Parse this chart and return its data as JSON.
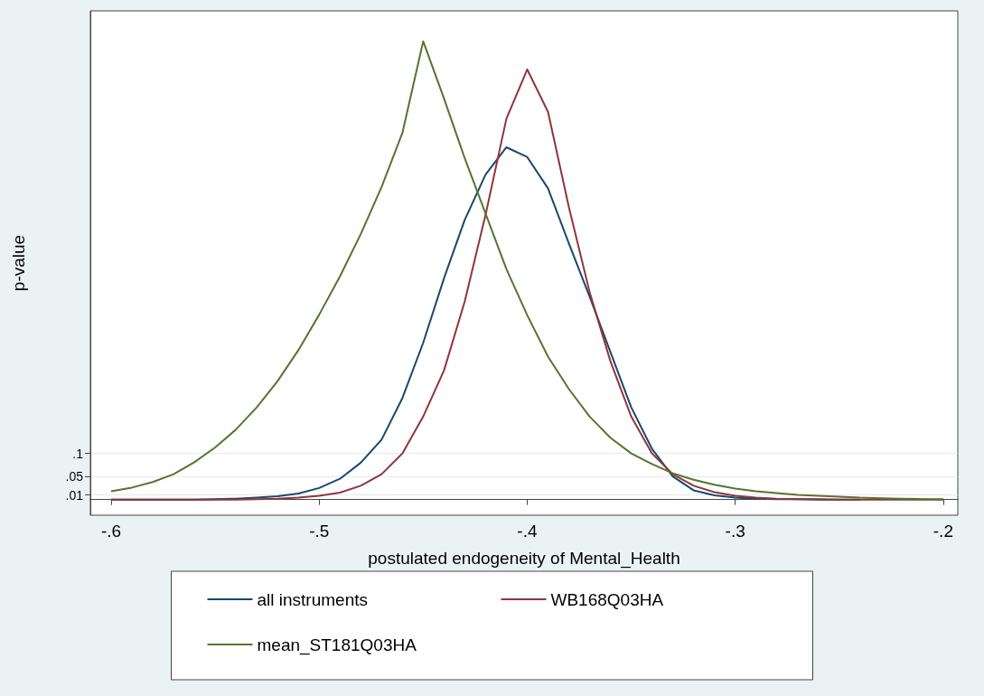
{
  "chart_data": {
    "type": "line",
    "xlabel": "postulated endogeneity of Mental_Health",
    "ylabel": "p-value",
    "x": [
      -0.6,
      -0.59,
      -0.58,
      -0.57,
      -0.56,
      -0.55,
      -0.54,
      -0.53,
      -0.52,
      -0.51,
      -0.5,
      -0.49,
      -0.48,
      -0.47,
      -0.46,
      -0.45,
      -0.44,
      -0.43,
      -0.42,
      -0.41,
      -0.4,
      -0.39,
      -0.38,
      -0.37,
      -0.36,
      -0.35,
      -0.34,
      -0.33,
      -0.32,
      -0.31,
      -0.3,
      -0.29,
      -0.28,
      -0.27,
      -0.26,
      -0.25,
      -0.24,
      -0.23,
      -0.22,
      -0.21,
      -0.2
    ],
    "series": [
      {
        "name": "all instruments",
        "color": "#1a476f",
        "values": [
          0,
          0,
          0,
          0,
          0,
          0.001,
          0.002,
          0.004,
          0.007,
          0.013,
          0.025,
          0.045,
          0.08,
          0.13,
          0.22,
          0.34,
          0.48,
          0.607,
          0.705,
          0.764,
          0.743,
          0.675,
          0.556,
          0.44,
          0.32,
          0.2,
          0.11,
          0.05,
          0.02,
          0.009,
          0.004,
          0.002,
          0.001,
          0.001,
          0,
          0,
          0,
          null,
          null,
          null,
          null
        ]
      },
      {
        "name": "WB168Q03HA",
        "color": "#90353b",
        "values": [
          0,
          0,
          0,
          0,
          0,
          0,
          0,
          0.001,
          0.002,
          0.004,
          0.008,
          0.015,
          0.03,
          0.055,
          0.1,
          0.18,
          0.28,
          0.43,
          0.618,
          0.826,
          0.933,
          0.841,
          0.635,
          0.45,
          0.3,
          0.18,
          0.1,
          0.055,
          0.03,
          0.016,
          0.008,
          0.004,
          0.002,
          0.001,
          0.001,
          0,
          0,
          0,
          0,
          0,
          0
        ]
      },
      {
        "name": "mean_ST181Q03HA",
        "color": "#55752f",
        "values": [
          0.018,
          0.026,
          0.038,
          0.055,
          0.081,
          0.113,
          0.152,
          0.2,
          0.257,
          0.324,
          0.401,
          0.484,
          0.576,
          0.678,
          0.795,
          0.994,
          0.87,
          0.74,
          0.62,
          0.5,
          0.4,
          0.31,
          0.24,
          0.18,
          0.134,
          0.1,
          0.077,
          0.057,
          0.043,
          0.032,
          0.024,
          0.018,
          0.014,
          0.01,
          0.008,
          0.006,
          0.004,
          0.003,
          0.002,
          0.001,
          0.001
        ]
      }
    ],
    "xlim": [
      -0.61,
      -0.193
    ],
    "xticks": [
      {
        "value": -0.6,
        "label": "-.6"
      },
      {
        "value": -0.5,
        "label": "-.5"
      },
      {
        "value": -0.4,
        "label": "-.4"
      },
      {
        "value": -0.3,
        "label": "-.3"
      },
      {
        "value": -0.2,
        "label": "-.2"
      }
    ],
    "ylim": [
      -0.034,
      1.06
    ],
    "yticks": [
      {
        "value": 0.01,
        "label": ".01"
      },
      {
        "value": 0.05,
        "label": ".05"
      },
      {
        "value": 0.1,
        "label": ".1"
      }
    ],
    "grid": "y",
    "legend": "bottom",
    "marker": "none",
    "line_style": "solid"
  }
}
